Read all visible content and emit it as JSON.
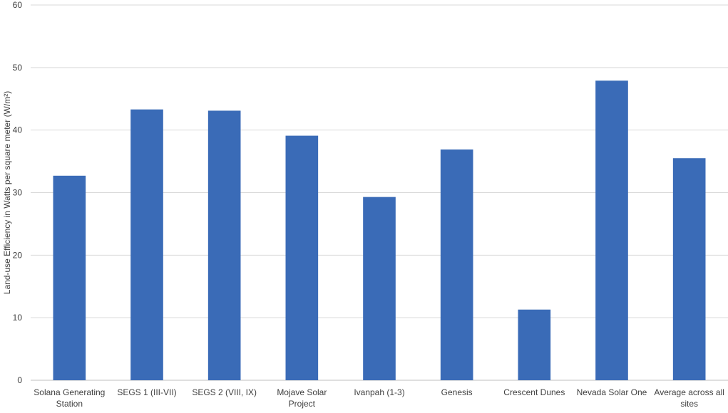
{
  "chart_data": {
    "type": "bar",
    "title": "",
    "xlabel": "",
    "ylabel": "Land-use Efficiency in Watts per square meter (W/m²)",
    "categories": [
      [
        "Solana Generating",
        "Station"
      ],
      [
        "SEGS 1 (III-VII)"
      ],
      [
        "SEGS 2 (VIII, IX)"
      ],
      [
        "Mojave Solar",
        "Project"
      ],
      [
        "Ivanpah (1-3)"
      ],
      [
        "Genesis"
      ],
      [
        "Crescent Dunes"
      ],
      [
        "Nevada Solar One"
      ],
      [
        "Average across all",
        "sites"
      ]
    ],
    "values": [
      32.7,
      43.3,
      43.1,
      39.1,
      29.3,
      36.9,
      11.3,
      47.9,
      35.5
    ],
    "ylim": [
      0,
      60
    ],
    "yticks": [
      0,
      10,
      20,
      30,
      40,
      50,
      60
    ],
    "grid": true,
    "legend": "none",
    "colors": {
      "bar": "#3A6BB7",
      "grid": "#D9D9D9",
      "axis": "#BFBFBF",
      "text": "#404040"
    }
  }
}
